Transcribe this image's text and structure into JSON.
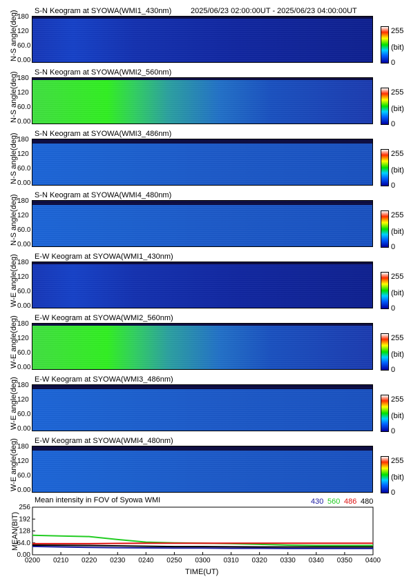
{
  "header": {
    "range_text": "2025/06/23 02:00:00UT - 2025/06/23 04:00:00UT"
  },
  "panels": [
    {
      "title": "S-N Keogram at SYOWA(WMI1_430nm)",
      "ylabel": "N-S angle(deg)",
      "style": "blue_dark"
    },
    {
      "title": "S-N Keogram at SYOWA(WMI2_560nm)",
      "ylabel": "N-S angle(deg)",
      "style": "green_bright"
    },
    {
      "title": "S-N Keogram at SYOWA(WMI3_486nm)",
      "ylabel": "N-S angle(deg)",
      "style": "blue_mid"
    },
    {
      "title": "S-N Keogram at SYOWA(WMI4_480nm)",
      "ylabel": "N-S angle(deg)",
      "style": "blue_mid"
    },
    {
      "title": "E-W Keogram at SYOWA(WMI1_430nm)",
      "ylabel": "W-E angle(deg)",
      "style": "blue_dark"
    },
    {
      "title": "E-W Keogram at SYOWA(WMI2_560nm)",
      "ylabel": "W-E angle(deg)",
      "style": "green_bright"
    },
    {
      "title": "E-W Keogram at SYOWA(WMI3_486nm)",
      "ylabel": "W-E angle(deg)",
      "style": "blue_mid"
    },
    {
      "title": "E-W Keogram at SYOWA(WMI4_480nm)",
      "ylabel": "W-E angle(deg)",
      "style": "blue_mid"
    }
  ],
  "yticks": [
    "180",
    "120",
    "60.0",
    "0.00"
  ],
  "colorbar": {
    "max": "255",
    "unit": "(bit)",
    "min": "0"
  },
  "mean_panel": {
    "title": "Mean intensity in FOV of Syowa WMI",
    "ylabel": "MEAN(BIT)",
    "xlabel": "TIME(UT)",
    "legend": [
      {
        "label": "430",
        "color": "#1a1aa0"
      },
      {
        "label": "560",
        "color": "#22cc22"
      },
      {
        "label": "486",
        "color": "#dd1111"
      },
      {
        "label": "480",
        "color": "#000000"
      }
    ]
  },
  "chart_data": {
    "type": "line",
    "title": "Mean intensity in FOV of Syowa WMI",
    "xlabel": "TIME(UT)",
    "ylabel": "MEAN(BIT)",
    "x": [
      "0200",
      "0210",
      "0220",
      "0230",
      "0240",
      "0250",
      "0300",
      "0310",
      "0320",
      "0330",
      "0340",
      "0350",
      "0400"
    ],
    "xlim": [
      "0200",
      "0400"
    ],
    "ylim": [
      0,
      256
    ],
    "yticks": [
      "256",
      "192",
      "128",
      "64.0",
      "0.00"
    ],
    "series": [
      {
        "name": "430",
        "color": "#1a1aa0",
        "values": [
          45,
          42,
          40,
          38,
          37,
          36,
          36,
          35,
          35,
          34,
          34,
          34,
          34
        ]
      },
      {
        "name": "560",
        "color": "#22cc22",
        "values": [
          105,
          101,
          98,
          82,
          68,
          64,
          62,
          60,
          56,
          52,
          50,
          50,
          50
        ]
      },
      {
        "name": "486",
        "color": "#dd1111",
        "values": [
          60,
          60,
          60,
          61,
          62,
          62,
          62,
          62,
          62,
          62,
          62,
          62,
          62
        ]
      },
      {
        "name": "480",
        "color": "#000000",
        "values": [
          52,
          51,
          50,
          48,
          46,
          44,
          44,
          43,
          42,
          42,
          42,
          42,
          42
        ]
      }
    ]
  }
}
